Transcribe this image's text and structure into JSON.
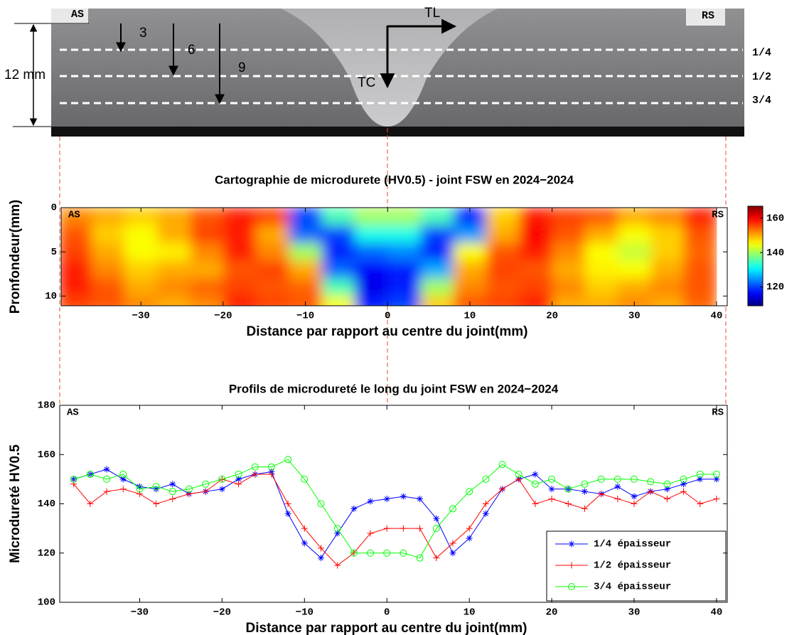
{
  "photo": {
    "side_labels": [
      "AS",
      "RS"
    ],
    "axis_labels": [
      "TL",
      "TC"
    ],
    "thickness": "12 mm",
    "depths": [
      "3",
      "6",
      "9"
    ],
    "levels": [
      "1/4",
      "1/2",
      "3/4"
    ]
  },
  "chart_data": [
    {
      "type": "heatmap",
      "title": "Cartographie de microdurete (HV0.5) - joint FSW en 2024−2024",
      "xlabel": "Distance par rapport au centre du joint(mm)",
      "ylabel": "Pronfondeur(mm)",
      "corner_labels": [
        "AS",
        "RS"
      ],
      "x": [
        -38,
        -34,
        -30,
        -26,
        -22,
        -18,
        -14,
        -10,
        -6,
        -2,
        2,
        6,
        10,
        14,
        18,
        22,
        26,
        30,
        34,
        38
      ],
      "y": [
        1,
        3,
        5,
        7,
        9,
        11
      ],
      "values": [
        [
          152,
          150,
          148,
          150,
          155,
          158,
          156,
          120,
          135,
          140,
          140,
          135,
          118,
          148,
          158,
          156,
          155,
          150,
          152,
          158
        ],
        [
          155,
          148,
          145,
          150,
          156,
          158,
          150,
          122,
          120,
          132,
          132,
          120,
          125,
          150,
          160,
          155,
          150,
          145,
          148,
          155
        ],
        [
          156,
          150,
          145,
          146,
          152,
          158,
          152,
          140,
          118,
          122,
          124,
          118,
          145,
          155,
          158,
          152,
          145,
          142,
          148,
          154
        ],
        [
          158,
          152,
          148,
          150,
          150,
          155,
          156,
          150,
          122,
          116,
          118,
          126,
          150,
          156,
          155,
          150,
          146,
          145,
          150,
          155
        ],
        [
          158,
          155,
          150,
          152,
          154,
          156,
          155,
          154,
          135,
          115,
          118,
          140,
          152,
          155,
          156,
          152,
          148,
          150,
          152,
          155
        ],
        [
          156,
          155,
          152,
          150,
          152,
          158,
          156,
          155,
          145,
          118,
          120,
          148,
          155,
          156,
          158,
          150,
          150,
          152,
          150,
          154
        ]
      ],
      "colormap": "jet",
      "clim": [
        109,
        167
      ],
      "cticks": [
        120,
        140,
        160
      ],
      "xlim": [
        -39.7,
        41.3
      ],
      "xticks": [
        {
          "value": -30,
          "label": "−30"
        },
        {
          "value": -20,
          "label": "−20"
        },
        {
          "value": -10,
          "label": "−10"
        },
        0,
        10,
        20,
        30,
        40
      ],
      "ylim": [
        11.1,
        0
      ],
      "yticks": [
        0,
        5,
        10
      ]
    },
    {
      "type": "line",
      "title": "Profils de microdureté le long du joint FSW en 2024−2024",
      "xlabel": "Distance par rapport au centre du joint(mm)",
      "ylabel": "Microdureté HV0.5",
      "corner_labels": [
        "AS",
        "RS"
      ],
      "x": [
        -38,
        -36,
        -34,
        -32,
        -30,
        -28,
        -26,
        -24,
        -22,
        -20,
        -18,
        -16,
        -14,
        -12,
        -10,
        -8,
        -6,
        -4,
        -2,
        0,
        2,
        4,
        6,
        8,
        10,
        12,
        14,
        16,
        18,
        20,
        22,
        24,
        26,
        28,
        30,
        32,
        34,
        36,
        38,
        40
      ],
      "series": [
        {
          "name": "1/4 épaisseur",
          "color": "#0000ff",
          "marker": "*",
          "values": [
            150,
            152,
            154,
            150,
            147,
            146,
            148,
            144,
            145,
            146,
            150,
            152,
            153,
            136,
            124,
            118,
            128,
            138,
            141,
            142,
            143,
            142,
            134,
            120,
            126,
            136,
            146,
            150,
            152,
            146,
            146,
            145,
            144,
            147,
            143,
            145,
            146,
            148,
            150,
            150
          ]
        },
        {
          "name": "1/2 épaisseur",
          "color": "#ff0000",
          "marker": "+",
          "values": [
            148,
            140,
            145,
            146,
            144,
            140,
            142,
            144,
            145,
            150,
            148,
            152,
            152,
            140,
            130,
            122,
            115,
            120,
            128,
            130,
            130,
            130,
            118,
            124,
            130,
            140,
            146,
            150,
            140,
            142,
            140,
            138,
            144,
            142,
            140,
            145,
            142,
            145,
            140,
            142
          ]
        },
        {
          "name": "3/4 épaisseur",
          "color": "#00ff00",
          "marker": "o",
          "values": [
            150,
            152,
            150,
            152,
            146,
            147,
            145,
            146,
            148,
            150,
            152,
            155,
            155,
            158,
            150,
            140,
            130,
            120,
            120,
            120,
            120,
            118,
            130,
            138,
            145,
            150,
            156,
            152,
            148,
            150,
            146,
            148,
            150,
            150,
            150,
            149,
            148,
            150,
            152,
            152
          ]
        }
      ],
      "legend": "lower right",
      "xlim": [
        -39.7,
        41.3
      ],
      "xticks": [
        {
          "value": -30,
          "label": "−30"
        },
        {
          "value": -20,
          "label": "−20"
        },
        {
          "value": -10,
          "label": "−10"
        },
        0,
        10,
        20,
        30,
        40
      ],
      "ylim": [
        100,
        180
      ],
      "yticks": [
        100,
        120,
        140,
        160,
        180
      ]
    }
  ]
}
